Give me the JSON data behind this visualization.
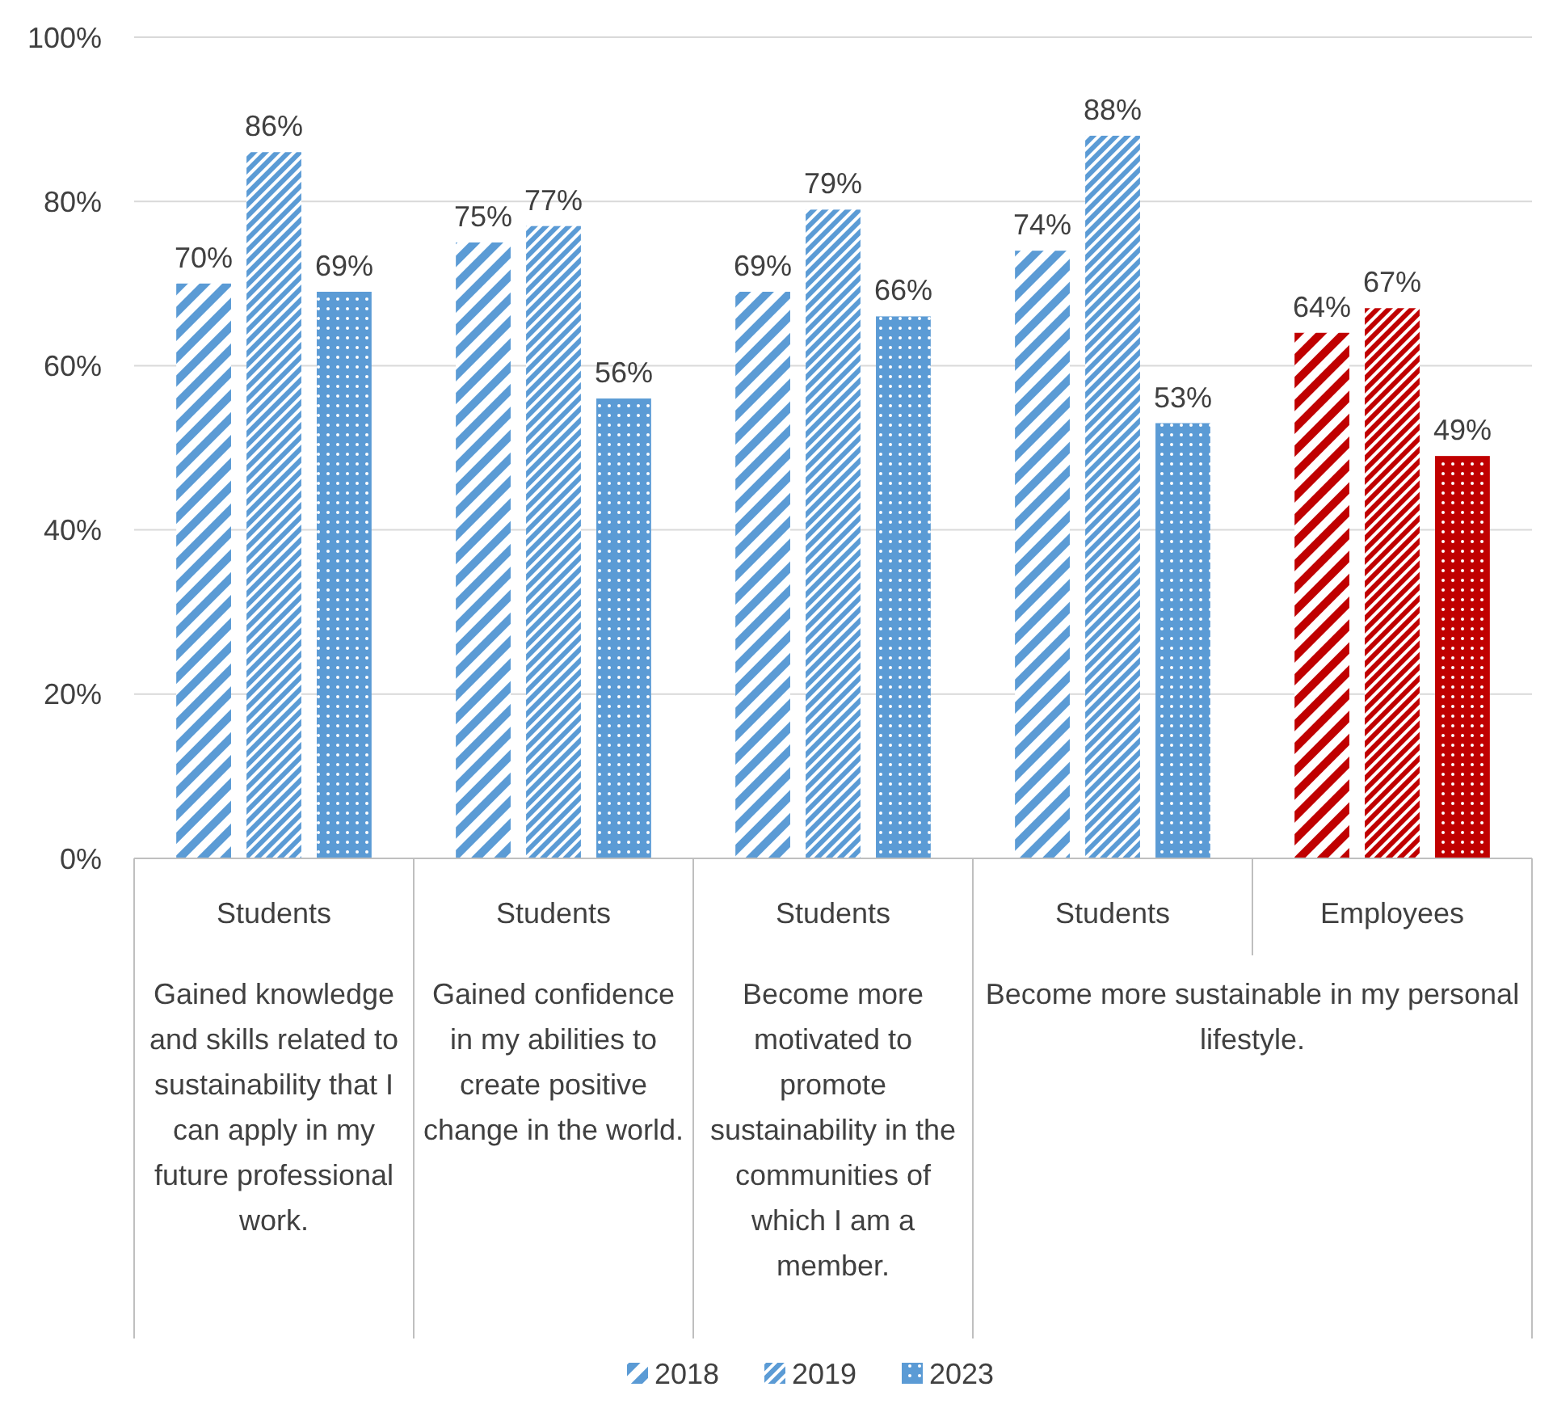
{
  "chart_data": {
    "type": "bar",
    "categories": [
      "Students",
      "Students",
      "Students",
      "Students",
      "Employees"
    ],
    "annotations": [
      "Gained knowledge and skills related to sustainability that I can apply in my future professional work.",
      "Gained confidence in my abilities to create positive change in the world.",
      "Become more motivated to promote sustainability in the communities of which I am a member.",
      "Become more sustainable in my personal lifestyle."
    ],
    "series": [
      {
        "name": "2018",
        "color": "#5b9bd5",
        "colors": [
          "#5b9bd5",
          "#5b9bd5",
          "#5b9bd5",
          "#5b9bd5",
          "#c00000"
        ],
        "values": [
          70,
          75,
          69,
          74,
          64
        ],
        "value_labels": [
          "70%",
          "75%",
          "69%",
          "74%",
          "64%"
        ]
      },
      {
        "name": "2019",
        "color": "#5b9bd5",
        "colors": [
          "#5b9bd5",
          "#5b9bd5",
          "#5b9bd5",
          "#5b9bd5",
          "#c00000"
        ],
        "values": [
          86,
          77,
          79,
          88,
          67
        ],
        "value_labels": [
          "86%",
          "77%",
          "79%",
          "88%",
          "67%"
        ]
      },
      {
        "name": "2023",
        "color": "#5b9bd5",
        "colors": [
          "#5b9bd5",
          "#5b9bd5",
          "#5b9bd5",
          "#5b9bd5",
          "#c00000"
        ],
        "values": [
          69,
          56,
          66,
          53,
          49
        ],
        "value_labels": [
          "69%",
          "56%",
          "66%",
          "53%",
          "49%"
        ]
      }
    ],
    "ylim": [
      0,
      100
    ],
    "yticks": [
      {
        "value": 0,
        "label": "0%"
      },
      {
        "value": 20,
        "label": "20%"
      },
      {
        "value": 40,
        "label": "40%"
      },
      {
        "value": 60,
        "label": "60%"
      },
      {
        "value": 80,
        "label": "80%"
      },
      {
        "value": 100,
        "label": "100%"
      }
    ],
    "grid": "y",
    "legend": "bottom"
  }
}
